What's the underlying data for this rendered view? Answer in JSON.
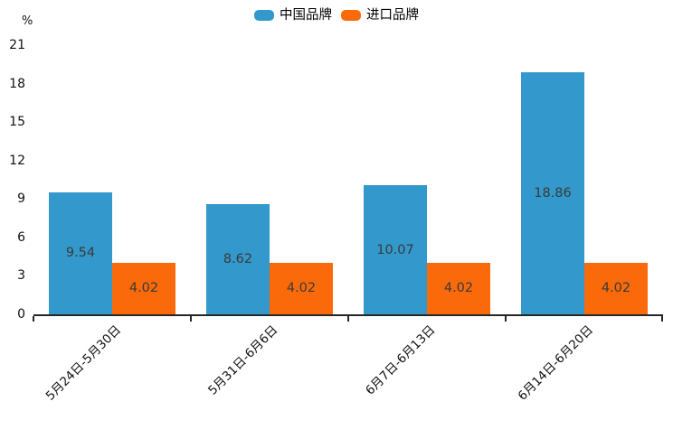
{
  "chart_data": {
    "type": "bar",
    "title": "",
    "categories": [
      "5月24日-5月30日",
      "5月31日-6月6日",
      "6月7日-6月13日",
      "6月14日-6月20日"
    ],
    "series": [
      {
        "name": "中国品牌",
        "color": "#3398cb",
        "values": [
          9.54,
          8.62,
          10.07,
          18.86
        ]
      },
      {
        "name": "进口品牌",
        "color": "#fb6a0a",
        "values": [
          4.02,
          4.02,
          4.02,
          4.02
        ]
      }
    ],
    "value_labels": [
      "9.54",
      "8.62",
      "10.07",
      "18.86",
      "4.02"
    ],
    "xlabel": "",
    "ylabel": "%",
    "ylim": [
      0,
      21
    ],
    "yticks": [
      0,
      3,
      6,
      9,
      12,
      15,
      18,
      21
    ],
    "grid": false,
    "legend_position": "top-center",
    "xtick_rotation": 45,
    "value_label_position": "inside-center",
    "background_color": "#ffffff",
    "axis_color": "#262626",
    "text_color": "#111111"
  },
  "legend": {
    "items": [
      {
        "label": "中国品牌",
        "color": "#3398cb"
      },
      {
        "label": "进口品牌",
        "color": "#fb6a0a"
      }
    ]
  }
}
